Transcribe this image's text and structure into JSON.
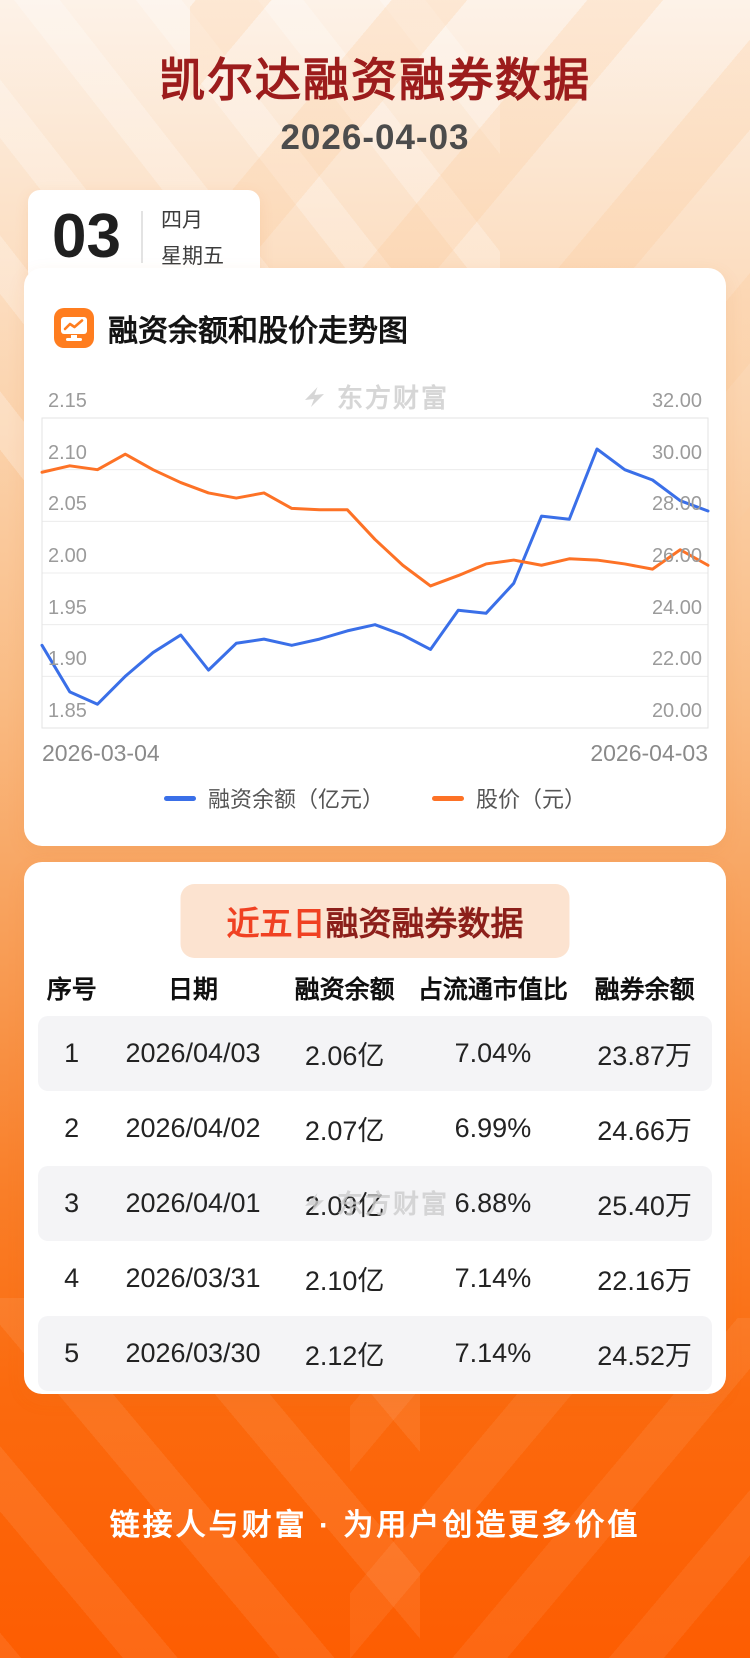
{
  "page": {
    "title": "凯尔达融资融券数据",
    "subtitle": "2026-04-03",
    "footer": "链接人与财富 · 为用户创造更多价值"
  },
  "date_card": {
    "day": "03",
    "month": "四月",
    "weekday": "星期五"
  },
  "watermark": {
    "text": "东方财富"
  },
  "chart_section": {
    "title": "融资余额和股价走势图"
  },
  "chart_data": {
    "type": "line",
    "title": "融资余额和股价走势图",
    "x_labels_visible": [
      "2026-03-04",
      "2026-04-03"
    ],
    "left_axis": {
      "label": "融资余额（亿元）",
      "min": 1.85,
      "max": 2.15,
      "ticks": [
        "2.15",
        "2.10",
        "2.05",
        "2.00",
        "1.95",
        "1.90",
        "1.85"
      ]
    },
    "right_axis": {
      "label": "股价（元）",
      "min": 20,
      "max": 32,
      "ticks": [
        "32.00",
        "30.00",
        "28.00",
        "26.00",
        "24.00",
        "22.00",
        "20.00"
      ]
    },
    "series": [
      {
        "name": "融资余额（亿元）",
        "axis": "left",
        "color": "#3a6fe8",
        "values": [
          1.93,
          1.885,
          1.873,
          1.9,
          1.923,
          1.94,
          1.906,
          1.932,
          1.936,
          1.93,
          1.936,
          1.944,
          1.95,
          1.94,
          1.926,
          1.964,
          1.961,
          1.99,
          2.055,
          2.052,
          2.12,
          2.1,
          2.09,
          2.07,
          2.06
        ]
      },
      {
        "name": "股价（元）",
        "axis": "right",
        "color": "#fd7226",
        "values": [
          29.9,
          30.15,
          30.0,
          30.6,
          30.0,
          29.5,
          29.1,
          28.9,
          29.1,
          28.5,
          28.45,
          28.45,
          27.3,
          26.3,
          25.5,
          25.9,
          26.35,
          26.5,
          26.3,
          26.55,
          26.5,
          26.35,
          26.15,
          26.9,
          26.3
        ]
      }
    ],
    "grid": true,
    "legend_position": "bottom"
  },
  "table_section": {
    "title_highlight": "近五日",
    "title_rest": "融资融券数据",
    "headers": [
      "序号",
      "日期",
      "融资余额",
      "占流通市值比",
      "融券余额"
    ],
    "rows": [
      [
        "1",
        "2026/04/03",
        "2.06亿",
        "7.04%",
        "23.87万"
      ],
      [
        "2",
        "2026/04/02",
        "2.07亿",
        "6.99%",
        "24.66万"
      ],
      [
        "3",
        "2026/04/01",
        "2.09亿",
        "6.88%",
        "25.40万"
      ],
      [
        "4",
        "2026/03/31",
        "2.10亿",
        "7.14%",
        "22.16万"
      ],
      [
        "5",
        "2026/03/30",
        "2.12亿",
        "7.14%",
        "24.52万"
      ]
    ]
  }
}
